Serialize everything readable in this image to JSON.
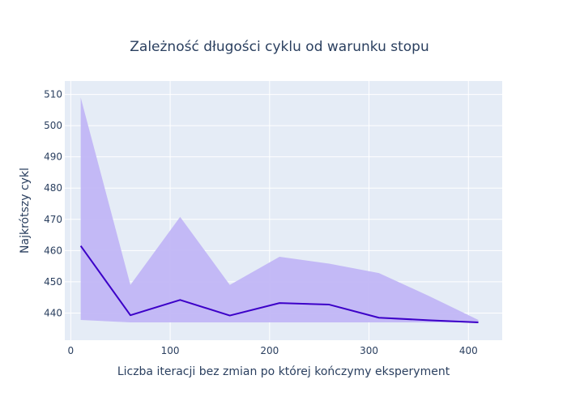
{
  "chart_data": {
    "type": "line",
    "title": "Zależność długości cyklu od warunku stopu",
    "xlabel": "Liczba iteracji bez zmian po której kończymy eksperyment",
    "ylabel": "Najkrótszy cykl",
    "xlim": [
      -6,
      434
    ],
    "ylim": [
      431.3,
      514.3
    ],
    "x_ticks": [
      0,
      100,
      200,
      300,
      400
    ],
    "x_tick_labels": [
      "0",
      "100",
      "200",
      "300",
      "400"
    ],
    "y_ticks": [
      440,
      450,
      460,
      470,
      480,
      490,
      500,
      510
    ],
    "y_tick_labels": [
      "440",
      "450",
      "460",
      "470",
      "480",
      "490",
      "500",
      "510"
    ],
    "grid": true,
    "legend": "none",
    "x": [
      10,
      60,
      110,
      160,
      210,
      260,
      310,
      360,
      410
    ],
    "series": [
      {
        "kind": "mean",
        "values": [
          461.5,
          439.3,
          444.2,
          439.2,
          443.2,
          442.7,
          438.5,
          437.7,
          437.0
        ],
        "color": "#3c00c8"
      },
      {
        "kind": "band-lower",
        "values": [
          437.8,
          437.0,
          437.0,
          437.0,
          437.0,
          437.0,
          437.0,
          437.0,
          437.0
        ]
      },
      {
        "kind": "band-upper",
        "values": [
          509.0,
          449.0,
          470.8,
          449.0,
          458.0,
          455.8,
          452.8,
          445.5,
          437.8
        ]
      }
    ],
    "band_color": "#c1b6f5",
    "plot_bg": "#e5ecf6",
    "grid_color": "#ffffff",
    "text_color": "#2a3f5f"
  }
}
